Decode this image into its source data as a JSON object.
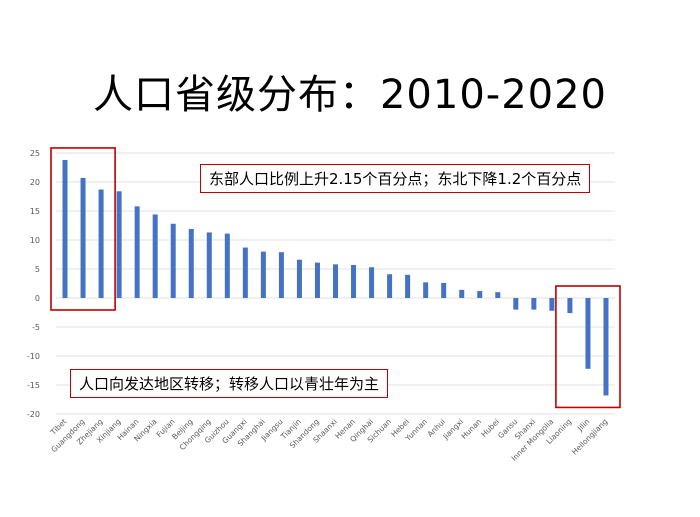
{
  "title": "人口省级分布：2010-2020",
  "annotations": {
    "east_northeast": "东部人口比例上升2.15个百分点；东北下降1.2个百分点",
    "flow": "人口向发达地区转移；转移人口以青壮年为主"
  },
  "colors": {
    "bar": "#4472c4",
    "highlight": "#c00000",
    "grid": "#d9d9d9",
    "tick": "#595959"
  },
  "chart_data": {
    "type": "bar",
    "title": "",
    "xlabel": "",
    "ylabel": "",
    "ylim": [
      -20,
      25
    ],
    "yticks": [
      25,
      20,
      15,
      10,
      5,
      0,
      -5,
      -10,
      -15,
      -20
    ],
    "grid": true,
    "categories": [
      "Tibet",
      "Guangdong",
      "Zhejiang",
      "Xinjiang",
      "Hainan",
      "Ningxia",
      "Fujian",
      "Beijing",
      "Chongqing",
      "Guizhou",
      "Guangxi",
      "Shanghai",
      "Jiangsu",
      "Tianjin",
      "Shandong",
      "Shaanxi",
      "Henan",
      "Qinghai",
      "Sichuan",
      "Hebei",
      "Yunnan",
      "Anhui",
      "Jiangxi",
      "Hunan",
      "Hubei",
      "Gansu",
      "Shanxi",
      "Inner Mongolia",
      "Liaoning",
      "Jilin",
      "Heilongjiang"
    ],
    "values": [
      23.8,
      20.7,
      18.7,
      18.4,
      15.8,
      14.4,
      12.8,
      11.9,
      11.3,
      11.1,
      8.7,
      8.0,
      7.9,
      6.6,
      6.1,
      5.8,
      5.7,
      5.3,
      4.1,
      4.0,
      2.7,
      2.6,
      1.4,
      1.2,
      1.0,
      -2.0,
      -2.0,
      -2.2,
      -2.6,
      -12.2,
      -16.8
    ],
    "highlight_groups": [
      [
        0,
        2
      ],
      [
        28,
        30
      ]
    ]
  }
}
